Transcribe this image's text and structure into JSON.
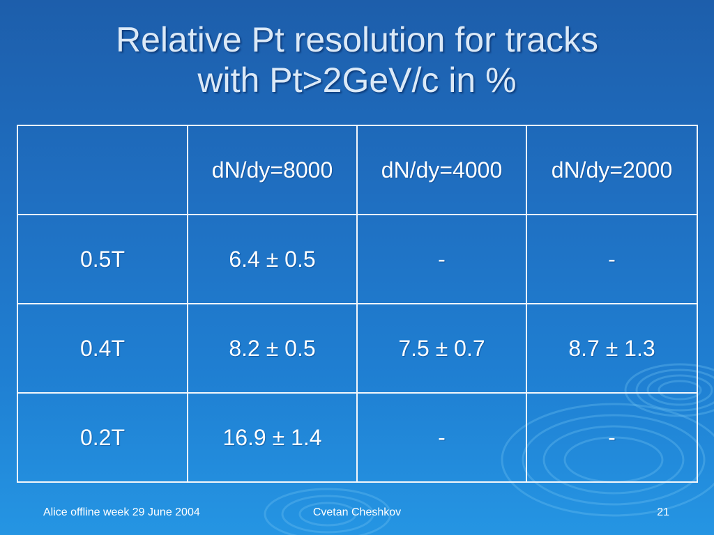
{
  "title": {
    "line1": "Relative Pt resolution for tracks",
    "line2": "with Pt>2GeV/c in %"
  },
  "table": {
    "corner": "",
    "columns": [
      "dN/dy=8000",
      "dN/dy=4000",
      "dN/dy=2000"
    ],
    "rows": [
      {
        "label": "0.5T",
        "cells": [
          "6.4 ± 0.5",
          "-",
          "-"
        ]
      },
      {
        "label": "0.4T",
        "cells": [
          "8.2 ± 0.5",
          "7.5 ± 0.7",
          "8.7 ± 1.3"
        ]
      },
      {
        "label": "0.2T",
        "cells": [
          "16.9 ± 1.4",
          "-",
          "-"
        ]
      }
    ]
  },
  "footer": {
    "left": "Alice offline week 29 June 2004",
    "center": "Cvetan Cheshkov",
    "right": "21"
  },
  "colors": {
    "background_top": "#1d5eab",
    "background_bottom": "#2595e3",
    "title_text": "#dbe9f7",
    "table_border": "#f4f7fb"
  }
}
